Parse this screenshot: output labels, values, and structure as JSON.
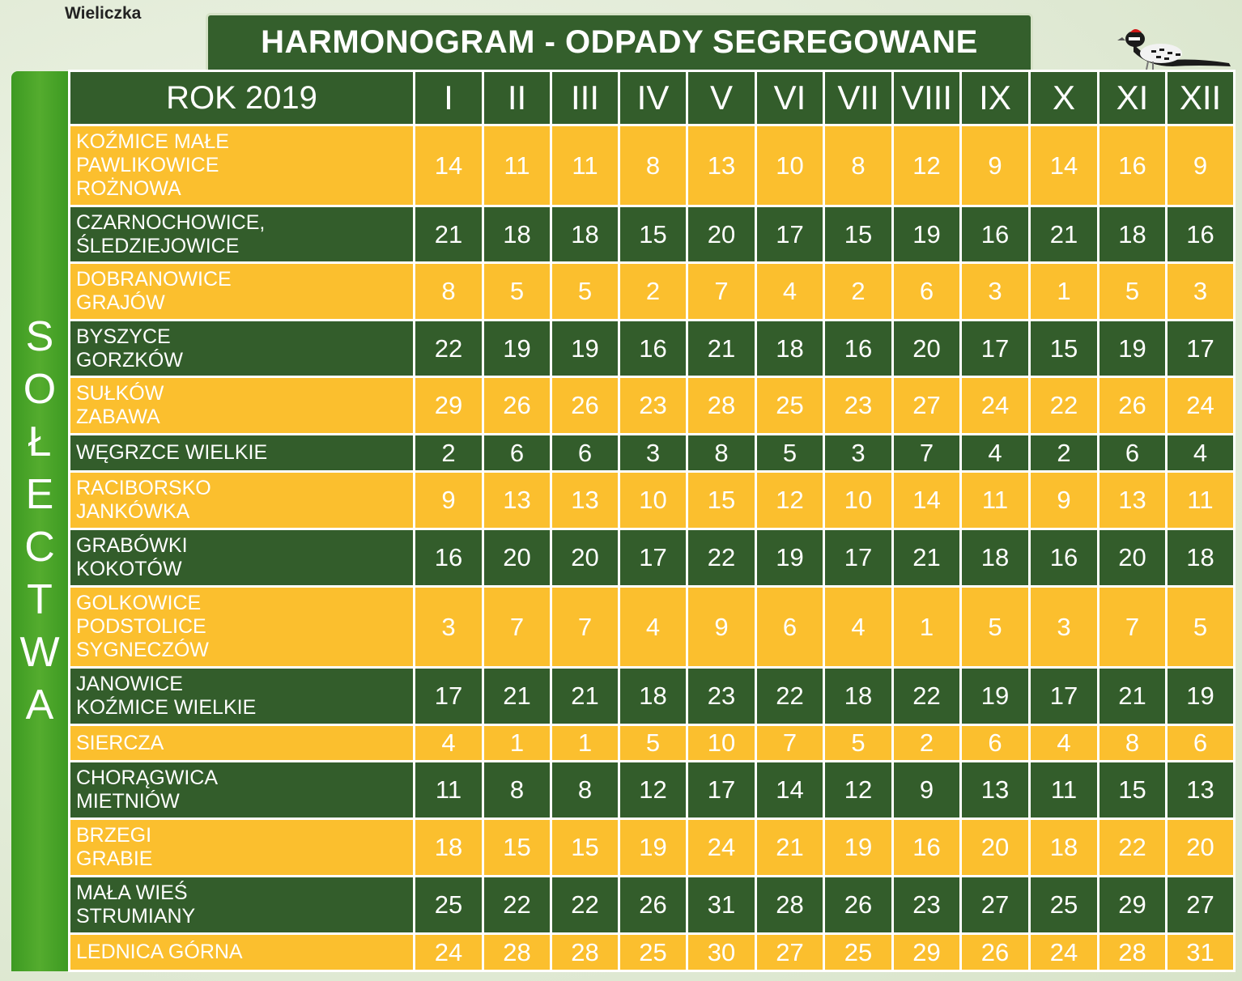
{
  "header": {
    "town": "Wieliczka",
    "title": "HARMONOGRAM - ODPADY SEGREGOWANE",
    "bird_icon": "woodpecker-icon"
  },
  "side_label": [
    "S",
    "O",
    "Ł",
    "E",
    "C",
    "T",
    "W",
    "A"
  ],
  "table": {
    "year_header": "ROK 2019",
    "months": [
      "I",
      "II",
      "III",
      "IV",
      "V",
      "VI",
      "VII",
      "VIII",
      "IX",
      "X",
      "XI",
      "XII"
    ],
    "rows": [
      {
        "name": [
          "KOŹMICE MAŁE",
          "PAWLIKOWICE",
          "ROŻNOWA"
        ],
        "values": [
          "14",
          "11",
          "11",
          "8",
          "13",
          "10",
          "8",
          "12",
          "9",
          "14",
          "16",
          "9"
        ]
      },
      {
        "name": [
          "CZARNOCHOWICE,",
          "ŚLEDZIEJOWICE"
        ],
        "values": [
          "21",
          "18",
          "18",
          "15",
          "20",
          "17",
          "15",
          "19",
          "16",
          "21",
          "18",
          "16"
        ]
      },
      {
        "name": [
          "DOBRANOWICE",
          "GRAJÓW"
        ],
        "values": [
          "8",
          "5",
          "5",
          "2",
          "7",
          "4",
          "2",
          "6",
          "3",
          "1",
          "5",
          "3"
        ]
      },
      {
        "name": [
          "BYSZYCE",
          "GORZKÓW"
        ],
        "values": [
          "22",
          "19",
          "19",
          "16",
          "21",
          "18",
          "16",
          "20",
          "17",
          "15",
          "19",
          "17"
        ]
      },
      {
        "name": [
          "SUŁKÓW",
          "ZABAWA"
        ],
        "values": [
          "29",
          "26",
          "26",
          "23",
          "28",
          "25",
          "23",
          "27",
          "24",
          "22",
          "26",
          "24"
        ]
      },
      {
        "name": [
          "WĘGRZCE WIELKIE"
        ],
        "values": [
          "2",
          "6",
          "6",
          "3",
          "8",
          "5",
          "3",
          "7",
          "4",
          "2",
          "6",
          "4"
        ]
      },
      {
        "name": [
          "RACIBORSKO",
          "JANKÓWKA"
        ],
        "values": [
          "9",
          "13",
          "13",
          "10",
          "15",
          "12",
          "10",
          "14",
          "11",
          "9",
          "13",
          "11"
        ]
      },
      {
        "name": [
          "GRABÓWKI",
          "KOKOTÓW"
        ],
        "values": [
          "16",
          "20",
          "20",
          "17",
          "22",
          "19",
          "17",
          "21",
          "18",
          "16",
          "20",
          "18"
        ]
      },
      {
        "name": [
          "GOLKOWICE",
          "PODSTOLICE",
          "SYGNECZÓW"
        ],
        "values": [
          "3",
          "7",
          "7",
          "4",
          "9",
          "6",
          "4",
          "1",
          "5",
          "3",
          "7",
          "5"
        ]
      },
      {
        "name": [
          "JANOWICE",
          "KOŹMICE WIELKIE"
        ],
        "values": [
          "17",
          "21",
          "21",
          "18",
          "23",
          "22",
          "18",
          "22",
          "19",
          "17",
          "21",
          "19"
        ]
      },
      {
        "name": [
          "SIERCZA"
        ],
        "values": [
          "4",
          "1",
          "1",
          "5",
          "10",
          "7",
          "5",
          "2",
          "6",
          "4",
          "8",
          "6"
        ]
      },
      {
        "name": [
          "CHORĄGWICA",
          "MIETNIÓW"
        ],
        "values": [
          "11",
          "8",
          "8",
          "12",
          "17",
          "14",
          "12",
          "9",
          "13",
          "11",
          "15",
          "13"
        ]
      },
      {
        "name": [
          "BRZEGI",
          "GRABIE"
        ],
        "values": [
          "18",
          "15",
          "15",
          "19",
          "24",
          "21",
          "19",
          "16",
          "20",
          "18",
          "22",
          "20"
        ]
      },
      {
        "name": [
          "MAŁA WIEŚ",
          "STRUMIANY"
        ],
        "values": [
          "25",
          "22",
          "22",
          "26",
          "31",
          "28",
          "26",
          "23",
          "27",
          "25",
          "29",
          "27"
        ]
      },
      {
        "name": [
          "LEDNICA GÓRNA"
        ],
        "values": [
          "24",
          "28",
          "28",
          "25",
          "30",
          "27",
          "25",
          "29",
          "26",
          "24",
          "28",
          "31"
        ]
      }
    ]
  },
  "colors": {
    "dark_green": "#335d2b",
    "light_green": "#54ac2e",
    "yellow": "#fbbf2e"
  }
}
